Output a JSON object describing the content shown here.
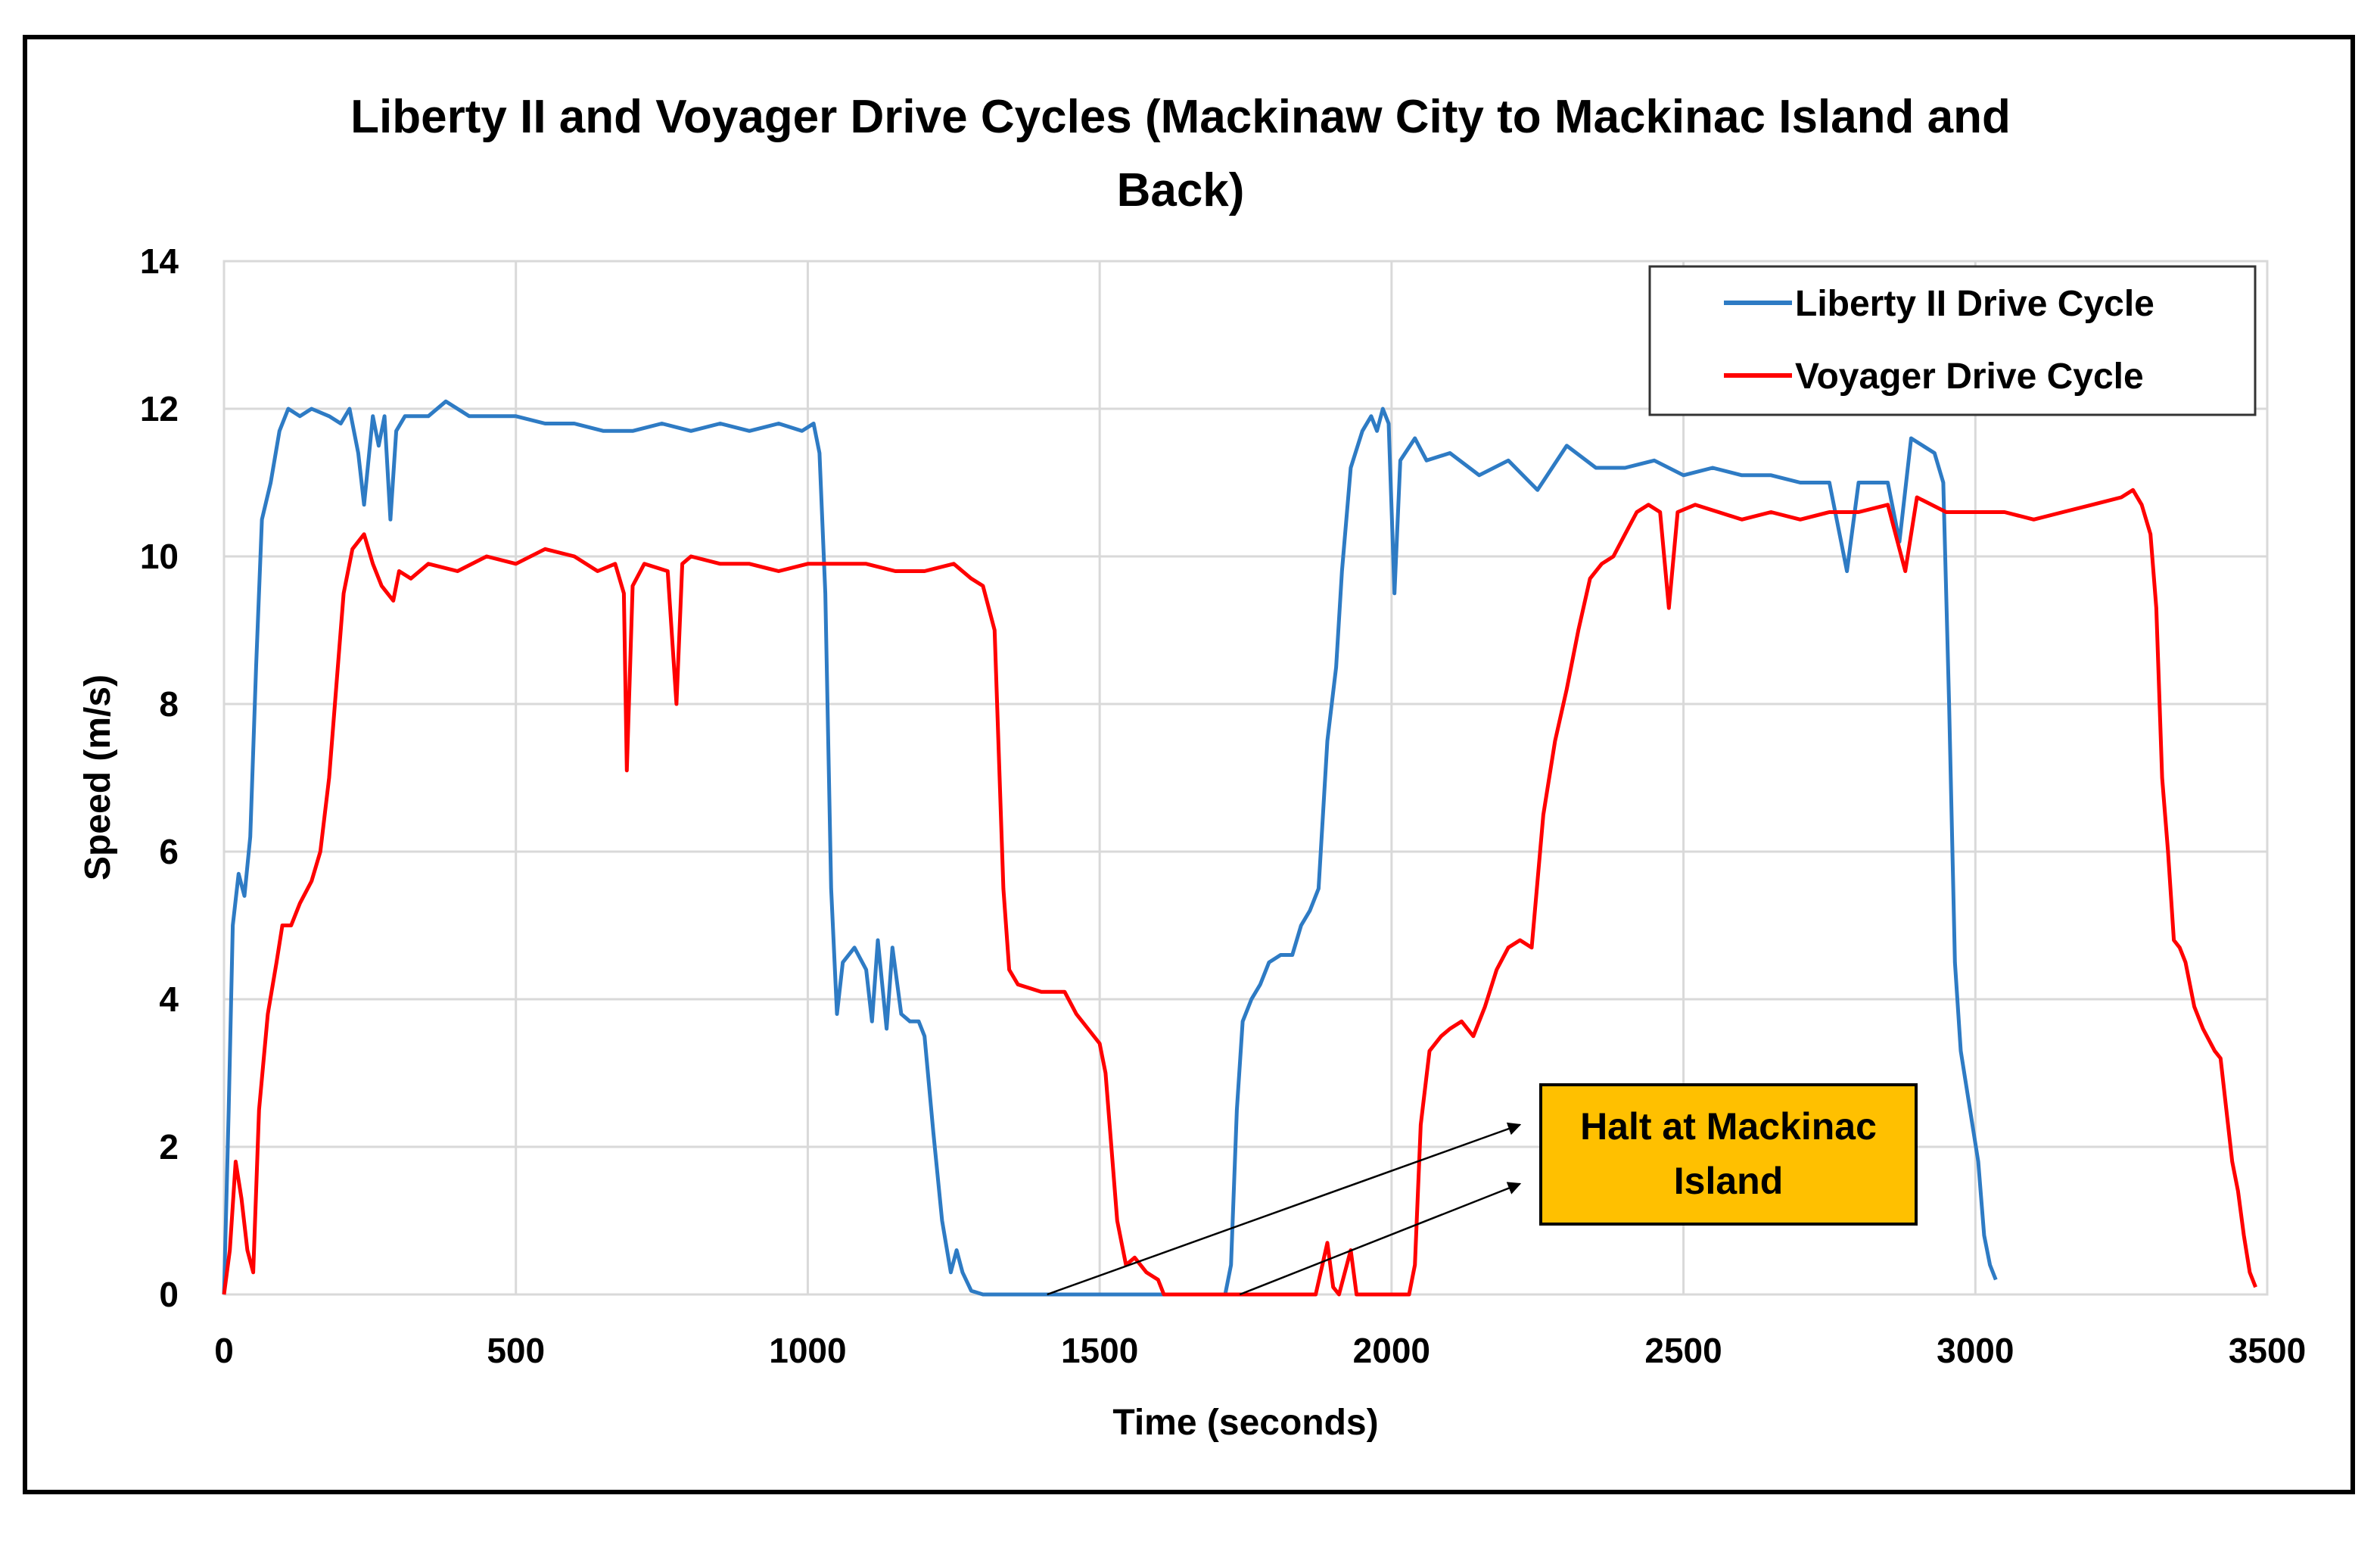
{
  "chart_data": {
    "type": "line",
    "title_line1": "Liberty II and Voyager Drive Cycles (Mackinaw City to Mackinac Island and",
    "title_line2": "Back)",
    "xlabel": "Time (seconds)",
    "ylabel": "Speed (m/s)",
    "xlim": [
      0,
      3500
    ],
    "ylim": [
      0,
      14
    ],
    "xticks": [
      0,
      500,
      1000,
      1500,
      2000,
      2500,
      3000,
      3500
    ],
    "yticks": [
      0,
      2,
      4,
      6,
      8,
      10,
      12,
      14
    ],
    "grid": true,
    "legend_position": "top-right",
    "series": [
      {
        "name": "Liberty II Drive Cycle",
        "color": "#2E7BC4",
        "points": [
          [
            0,
            0
          ],
          [
            8,
            2.5
          ],
          [
            15,
            5.0
          ],
          [
            25,
            5.7
          ],
          [
            35,
            5.4
          ],
          [
            45,
            6.2
          ],
          [
            55,
            8.5
          ],
          [
            65,
            10.5
          ],
          [
            80,
            11.0
          ],
          [
            95,
            11.7
          ],
          [
            110,
            12.0
          ],
          [
            130,
            11.9
          ],
          [
            150,
            12.0
          ],
          [
            180,
            11.9
          ],
          [
            200,
            11.8
          ],
          [
            215,
            12.0
          ],
          [
            230,
            11.4
          ],
          [
            240,
            10.7
          ],
          [
            255,
            11.9
          ],
          [
            265,
            11.5
          ],
          [
            275,
            11.9
          ],
          [
            285,
            10.5
          ],
          [
            295,
            11.7
          ],
          [
            310,
            11.9
          ],
          [
            350,
            11.9
          ],
          [
            380,
            12.1
          ],
          [
            420,
            11.9
          ],
          [
            500,
            11.9
          ],
          [
            550,
            11.8
          ],
          [
            600,
            11.8
          ],
          [
            650,
            11.7
          ],
          [
            700,
            11.7
          ],
          [
            750,
            11.8
          ],
          [
            800,
            11.7
          ],
          [
            850,
            11.8
          ],
          [
            900,
            11.7
          ],
          [
            950,
            11.8
          ],
          [
            990,
            11.7
          ],
          [
            1010,
            11.8
          ],
          [
            1020,
            11.4
          ],
          [
            1030,
            9.5
          ],
          [
            1040,
            5.5
          ],
          [
            1050,
            3.8
          ],
          [
            1060,
            4.5
          ],
          [
            1080,
            4.7
          ],
          [
            1100,
            4.4
          ],
          [
            1110,
            3.7
          ],
          [
            1120,
            4.8
          ],
          [
            1135,
            3.6
          ],
          [
            1145,
            4.7
          ],
          [
            1160,
            3.8
          ],
          [
            1175,
            3.7
          ],
          [
            1190,
            3.7
          ],
          [
            1200,
            3.5
          ],
          [
            1215,
            2.2
          ],
          [
            1230,
            1.0
          ],
          [
            1245,
            0.3
          ],
          [
            1255,
            0.6
          ],
          [
            1265,
            0.3
          ],
          [
            1280,
            0.05
          ],
          [
            1300,
            0.0
          ],
          [
            1400,
            0.0
          ],
          [
            1600,
            0.0
          ],
          [
            1715,
            0.0
          ],
          [
            1725,
            0.4
          ],
          [
            1735,
            2.5
          ],
          [
            1745,
            3.7
          ],
          [
            1760,
            4.0
          ],
          [
            1775,
            4.2
          ],
          [
            1790,
            4.5
          ],
          [
            1810,
            4.6
          ],
          [
            1830,
            4.6
          ],
          [
            1845,
            5.0
          ],
          [
            1860,
            5.2
          ],
          [
            1875,
            5.5
          ],
          [
            1890,
            7.5
          ],
          [
            1905,
            8.5
          ],
          [
            1915,
            9.8
          ],
          [
            1930,
            11.2
          ],
          [
            1950,
            11.7
          ],
          [
            1965,
            11.9
          ],
          [
            1975,
            11.7
          ],
          [
            1985,
            12.0
          ],
          [
            1995,
            11.8
          ],
          [
            2005,
            9.5
          ],
          [
            2015,
            11.3
          ],
          [
            2040,
            11.6
          ],
          [
            2060,
            11.3
          ],
          [
            2100,
            11.4
          ],
          [
            2150,
            11.1
          ],
          [
            2200,
            11.3
          ],
          [
            2250,
            10.9
          ],
          [
            2300,
            11.5
          ],
          [
            2350,
            11.2
          ],
          [
            2400,
            11.2
          ],
          [
            2450,
            11.3
          ],
          [
            2500,
            11.1
          ],
          [
            2550,
            11.2
          ],
          [
            2600,
            11.1
          ],
          [
            2650,
            11.1
          ],
          [
            2700,
            11.0
          ],
          [
            2750,
            11.0
          ],
          [
            2780,
            9.8
          ],
          [
            2800,
            11.0
          ],
          [
            2850,
            11.0
          ],
          [
            2870,
            10.2
          ],
          [
            2890,
            11.6
          ],
          [
            2910,
            11.5
          ],
          [
            2930,
            11.4
          ],
          [
            2945,
            11.0
          ],
          [
            2955,
            8.0
          ],
          [
            2965,
            4.5
          ],
          [
            2975,
            3.3
          ],
          [
            2985,
            2.8
          ],
          [
            2995,
            2.3
          ],
          [
            3005,
            1.8
          ],
          [
            3015,
            0.8
          ],
          [
            3025,
            0.4
          ],
          [
            3035,
            0.2
          ]
        ]
      },
      {
        "name": "Voyager Drive Cycle",
        "color": "#FF0000",
        "points": [
          [
            0,
            0
          ],
          [
            10,
            0.6
          ],
          [
            20,
            1.8
          ],
          [
            30,
            1.3
          ],
          [
            40,
            0.6
          ],
          [
            50,
            0.3
          ],
          [
            60,
            2.5
          ],
          [
            75,
            3.8
          ],
          [
            90,
            4.5
          ],
          [
            100,
            5.0
          ],
          [
            115,
            5.0
          ],
          [
            130,
            5.3
          ],
          [
            150,
            5.6
          ],
          [
            165,
            6.0
          ],
          [
            180,
            7.0
          ],
          [
            195,
            8.5
          ],
          [
            205,
            9.5
          ],
          [
            220,
            10.1
          ],
          [
            240,
            10.3
          ],
          [
            255,
            9.9
          ],
          [
            270,
            9.6
          ],
          [
            290,
            9.4
          ],
          [
            300,
            9.8
          ],
          [
            320,
            9.7
          ],
          [
            350,
            9.9
          ],
          [
            400,
            9.8
          ],
          [
            450,
            10.0
          ],
          [
            500,
            9.9
          ],
          [
            550,
            10.1
          ],
          [
            600,
            10.0
          ],
          [
            640,
            9.8
          ],
          [
            670,
            9.9
          ],
          [
            685,
            9.5
          ],
          [
            690,
            7.1
          ],
          [
            700,
            9.6
          ],
          [
            720,
            9.9
          ],
          [
            760,
            9.8
          ],
          [
            775,
            8.0
          ],
          [
            785,
            9.9
          ],
          [
            800,
            10.0
          ],
          [
            850,
            9.9
          ],
          [
            900,
            9.9
          ],
          [
            950,
            9.8
          ],
          [
            1000,
            9.9
          ],
          [
            1050,
            9.9
          ],
          [
            1100,
            9.9
          ],
          [
            1150,
            9.8
          ],
          [
            1200,
            9.8
          ],
          [
            1250,
            9.9
          ],
          [
            1280,
            9.7
          ],
          [
            1300,
            9.6
          ],
          [
            1320,
            9.0
          ],
          [
            1335,
            5.5
          ],
          [
            1345,
            4.4
          ],
          [
            1360,
            4.2
          ],
          [
            1400,
            4.1
          ],
          [
            1440,
            4.1
          ],
          [
            1460,
            3.8
          ],
          [
            1480,
            3.6
          ],
          [
            1500,
            3.4
          ],
          [
            1510,
            3.0
          ],
          [
            1520,
            2.0
          ],
          [
            1530,
            1.0
          ],
          [
            1545,
            0.4
          ],
          [
            1560,
            0.5
          ],
          [
            1580,
            0.3
          ],
          [
            1600,
            0.2
          ],
          [
            1610,
            0.0
          ],
          [
            1700,
            0.0
          ],
          [
            1800,
            0.0
          ],
          [
            1870,
            0.0
          ],
          [
            1890,
            0.7
          ],
          [
            1900,
            0.1
          ],
          [
            1910,
            0.0
          ],
          [
            1930,
            0.6
          ],
          [
            1940,
            0.0
          ],
          [
            2030,
            0.0
          ],
          [
            2040,
            0.4
          ],
          [
            2050,
            2.3
          ],
          [
            2065,
            3.3
          ],
          [
            2085,
            3.5
          ],
          [
            2100,
            3.6
          ],
          [
            2120,
            3.7
          ],
          [
            2140,
            3.5
          ],
          [
            2160,
            3.9
          ],
          [
            2180,
            4.4
          ],
          [
            2200,
            4.7
          ],
          [
            2220,
            4.8
          ],
          [
            2240,
            4.7
          ],
          [
            2260,
            6.5
          ],
          [
            2280,
            7.5
          ],
          [
            2300,
            8.2
          ],
          [
            2320,
            9.0
          ],
          [
            2340,
            9.7
          ],
          [
            2360,
            9.9
          ],
          [
            2380,
            10.0
          ],
          [
            2400,
            10.3
          ],
          [
            2420,
            10.6
          ],
          [
            2440,
            10.7
          ],
          [
            2460,
            10.6
          ],
          [
            2475,
            9.3
          ],
          [
            2490,
            10.6
          ],
          [
            2520,
            10.7
          ],
          [
            2560,
            10.6
          ],
          [
            2600,
            10.5
          ],
          [
            2650,
            10.6
          ],
          [
            2700,
            10.5
          ],
          [
            2750,
            10.6
          ],
          [
            2800,
            10.6
          ],
          [
            2850,
            10.7
          ],
          [
            2880,
            9.8
          ],
          [
            2900,
            10.8
          ],
          [
            2950,
            10.6
          ],
          [
            3000,
            10.6
          ],
          [
            3050,
            10.6
          ],
          [
            3100,
            10.5
          ],
          [
            3150,
            10.6
          ],
          [
            3200,
            10.7
          ],
          [
            3250,
            10.8
          ],
          [
            3270,
            10.9
          ],
          [
            3285,
            10.7
          ],
          [
            3300,
            10.3
          ],
          [
            3310,
            9.3
          ],
          [
            3320,
            7.0
          ],
          [
            3330,
            6.0
          ],
          [
            3340,
            4.8
          ],
          [
            3350,
            4.7
          ],
          [
            3360,
            4.5
          ],
          [
            3375,
            3.9
          ],
          [
            3390,
            3.6
          ],
          [
            3410,
            3.3
          ],
          [
            3420,
            3.2
          ],
          [
            3430,
            2.5
          ],
          [
            3440,
            1.8
          ],
          [
            3450,
            1.4
          ],
          [
            3460,
            0.8
          ],
          [
            3470,
            0.3
          ],
          [
            3480,
            0.1
          ]
        ]
      }
    ],
    "annotation": {
      "text_line1": "Halt at Mackinac",
      "text_line2": "Island",
      "color": "#FFC000",
      "arrows": [
        {
          "from": [
            1410,
            0
          ],
          "to": [
            2220,
            2.3
          ]
        },
        {
          "from": [
            1740,
            0
          ],
          "to": [
            2220,
            1.5
          ]
        }
      ]
    }
  }
}
